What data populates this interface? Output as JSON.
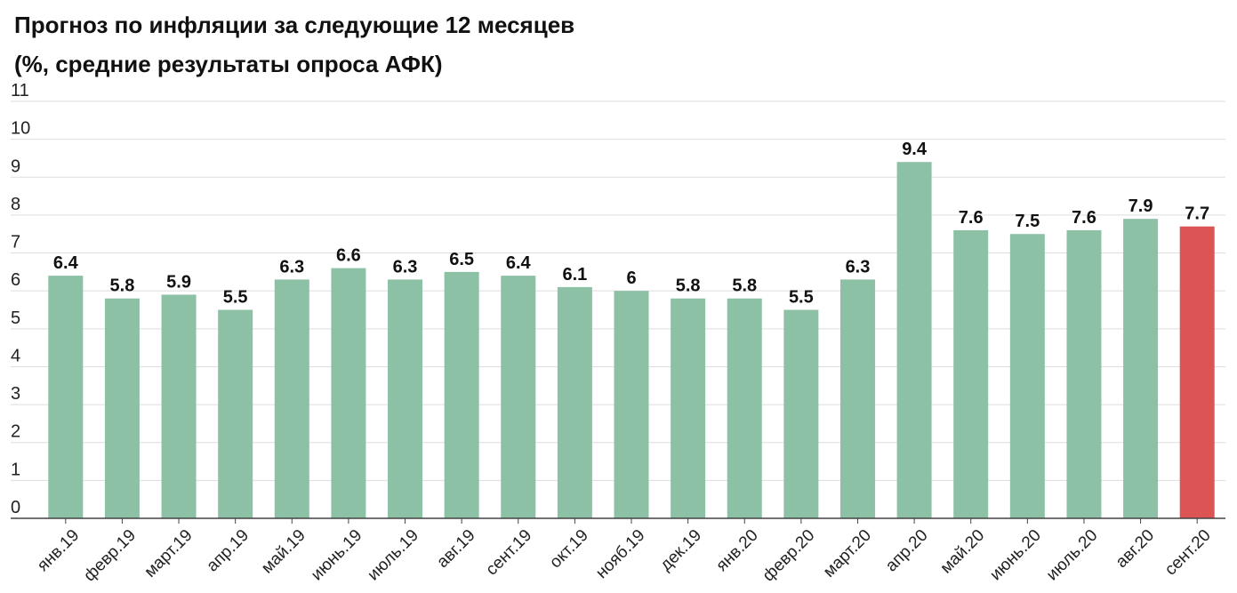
{
  "chart_data": {
    "type": "bar",
    "title_line1": "Прогноз по инфляции за следующие 12 месяцев",
    "title_line2": "(%, средние результаты опроса АФК)",
    "xlabel": "",
    "ylabel": "",
    "ylim": [
      0,
      11
    ],
    "yticks": [
      0,
      1,
      2,
      3,
      4,
      5,
      6,
      7,
      8,
      9,
      10,
      11
    ],
    "grid": true,
    "legend": "none",
    "categories": [
      "янв.19",
      "февр.19",
      "март.19",
      "апр.19",
      "май.19",
      "июнь.19",
      "июль.19",
      "авг.19",
      "сент.19",
      "окт.19",
      "нояб.19",
      "дек.19",
      "янв.20",
      "февр.20",
      "март.20",
      "апр.20",
      "май.20",
      "июнь.20",
      "июль.20",
      "авг.20",
      "сент.20"
    ],
    "values": [
      6.4,
      5.8,
      5.9,
      5.5,
      6.3,
      6.6,
      6.3,
      6.5,
      6.4,
      6.1,
      6,
      5.8,
      5.8,
      5.5,
      6.3,
      9.4,
      7.6,
      7.5,
      7.6,
      7.9,
      7.7
    ],
    "colors": {
      "bar": "#8dc1a6",
      "highlight": "#dc5454",
      "grid": "#dddddd",
      "axis": "#444444"
    },
    "highlight_category": "сент.20"
  }
}
